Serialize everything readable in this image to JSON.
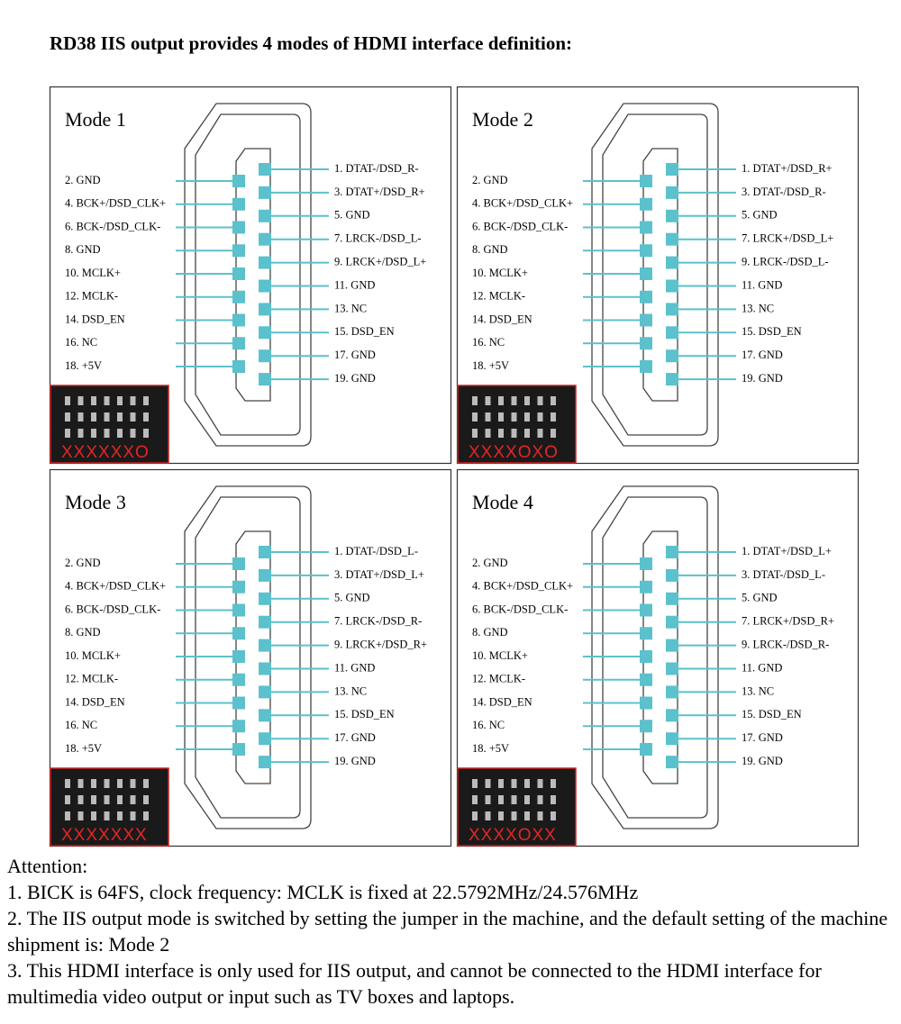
{
  "title": "RD38 IIS output provides 4 modes of HDMI interface definition:",
  "modes": [
    {
      "title": "Mode 1",
      "left_pins": [
        "2. GND",
        "4. BCK+/DSD_CLK+",
        "6. BCK-/DSD_CLK-",
        "8. GND",
        "10. MCLK+",
        "12. MCLK-",
        "14. DSD_EN",
        "16. NC",
        "18. +5V"
      ],
      "right_pins": [
        "1. DTAT-/DSD_R-",
        "3. DTAT+/DSD_R+",
        "5. GND",
        "7. LRCK-/DSD_L-",
        "9. LRCK+/DSD_L+",
        "11. GND",
        "13. NC",
        "15. DSD_EN",
        "17. GND",
        "19. GND"
      ],
      "jumper": "XXXXXXO"
    },
    {
      "title": "Mode 2",
      "left_pins": [
        "2. GND",
        "4. BCK+/DSD_CLK+",
        "6. BCK-/DSD_CLK-",
        "8. GND",
        "10. MCLK+",
        "12. MCLK-",
        "14. DSD_EN",
        "16. NC",
        "18. +5V"
      ],
      "right_pins": [
        "1. DTAT+/DSD_R+",
        "3. DTAT-/DSD_R-",
        "5. GND",
        "7. LRCK+/DSD_L+",
        "9. LRCK-/DSD_L-",
        "11. GND",
        "13. NC",
        "15. DSD_EN",
        "17. GND",
        "19. GND"
      ],
      "jumper": "XXXXOXO"
    },
    {
      "title": "Mode 3",
      "left_pins": [
        "2. GND",
        "4. BCK+/DSD_CLK+",
        "6. BCK-/DSD_CLK-",
        "8. GND",
        "10. MCLK+",
        "12. MCLK-",
        "14. DSD_EN",
        "16. NC",
        "18. +5V"
      ],
      "right_pins": [
        "1. DTAT-/DSD_L-",
        "3. DTAT+/DSD_L+",
        "5. GND",
        "7. LRCK-/DSD_R-",
        "9. LRCK+/DSD_R+",
        "11. GND",
        "13. NC",
        "15. DSD_EN",
        "17. GND",
        "19. GND"
      ],
      "jumper": "XXXXXXX"
    },
    {
      "title": "Mode 4",
      "left_pins": [
        "2. GND",
        "4. BCK+/DSD_CLK+",
        "6. BCK-/DSD_CLK-",
        "8. GND",
        "10. MCLK+",
        "12. MCLK-",
        "14. DSD_EN",
        "16. NC",
        "18. +5V"
      ],
      "right_pins": [
        "1. DTAT+/DSD_L+",
        "3. DTAT-/DSD_L-",
        "5. GND",
        "7. LRCK+/DSD_R+",
        "9. LRCK-/DSD_R-",
        "11. GND",
        "13. NC",
        "15. DSD_EN",
        "17. GND",
        "19. GND"
      ],
      "jumper": "XXXXOXX"
    }
  ],
  "attention": {
    "heading": "Attention:",
    "notes": [
      "1. BICK is 64FS, clock frequency: MCLK is fixed at 22.5792MHz/24.576MHz",
      "2. The IIS output mode is switched by setting the jumper in the machine, and the default setting of the machine shipment is: Mode 2",
      "3. This HDMI interface is only used for IIS output, and cannot be connected to the HDMI interface for multimedia video output or input such as TV boxes and laptops."
    ]
  }
}
